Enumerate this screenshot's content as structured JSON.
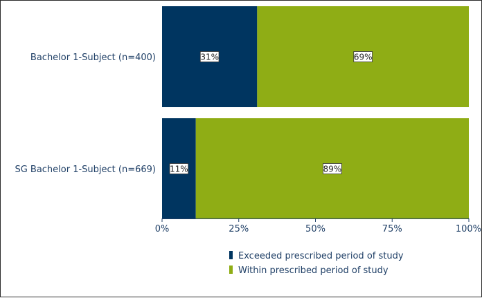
{
  "chart_data": {
    "type": "bar",
    "orientation": "horizontal",
    "stacked": true,
    "categories": [
      "Bachelor 1-Subject (n=400)",
      "SG Bachelor 1-Subject (n=669)"
    ],
    "series": [
      {
        "name": "Exceeded prescribed period of study",
        "values": [
          31,
          11
        ],
        "labels": [
          "31%",
          "11%"
        ],
        "color": "#003560"
      },
      {
        "name": "Within prescribed period of study",
        "values": [
          69,
          89
        ],
        "labels": [
          "69%",
          "89%"
        ],
        "color": "#8fad15"
      }
    ],
    "xlim": [
      0,
      100
    ],
    "xticks": [
      0,
      25,
      50,
      75,
      100
    ],
    "xtick_labels": [
      "0%",
      "25%",
      "50%",
      "75%",
      "100%"
    ],
    "grid": false,
    "legend_position": "bottom"
  }
}
